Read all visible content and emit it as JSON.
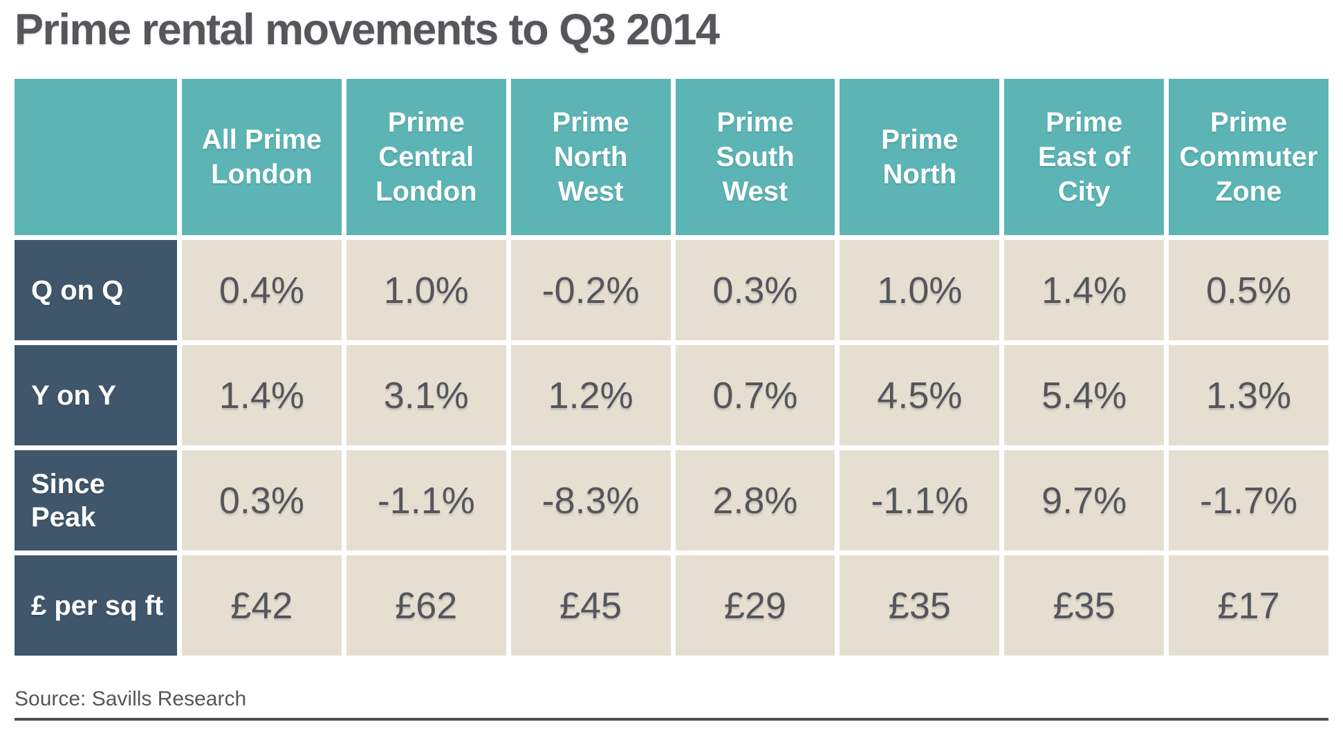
{
  "title": "Prime rental movements to Q3 2014",
  "source": "Source: Savills Research",
  "colors": {
    "header_teal": "#5CB4B5",
    "label_slate": "#40566A",
    "value_beige": "#E5DFD2",
    "text_gray": "#54565A"
  },
  "chart_data": {
    "type": "table",
    "title": "Prime rental movements to Q3 2014",
    "columns": [
      "All Prime London",
      "Prime Central London",
      "Prime North West",
      "Prime South West",
      "Prime North",
      "Prime East of City",
      "Prime Commuter Zone"
    ],
    "rows": [
      {
        "label": "Q on Q",
        "values": [
          "0.4%",
          "1.0%",
          "-0.2%",
          "0.3%",
          "1.0%",
          "1.4%",
          "0.5%"
        ]
      },
      {
        "label": "Y on Y",
        "values": [
          "1.4%",
          "3.1%",
          "1.2%",
          "0.7%",
          "4.5%",
          "5.4%",
          "1.3%"
        ]
      },
      {
        "label": "Since Peak",
        "values": [
          "0.3%",
          "-1.1%",
          "-8.3%",
          "2.8%",
          "-1.1%",
          "9.7%",
          "-1.7%"
        ]
      },
      {
        "label": "£ per sq ft",
        "values": [
          "£42",
          "£62",
          "£45",
          "£29",
          "£35",
          "£35",
          "£17"
        ]
      }
    ],
    "source": "Source: Savills Research"
  },
  "display": {
    "headers": [
      "All Prime\nLondon",
      "Prime\nCentral\nLondon",
      "Prime\nNorth\nWest",
      "Prime\nSouth\nWest",
      "Prime\nNorth",
      "Prime\nEast of\nCity",
      "Prime\nCommuter\nZone"
    ],
    "row_labels": [
      "Q on Q",
      "Y on Y",
      "Since\nPeak",
      "£ per sq ft"
    ]
  }
}
